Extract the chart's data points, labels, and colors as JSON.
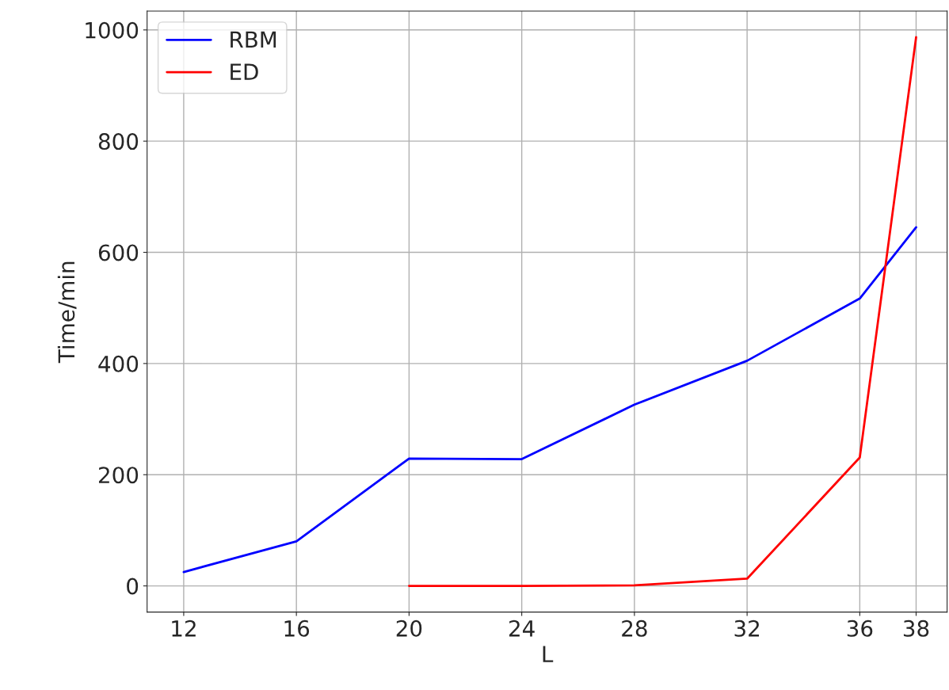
{
  "chart_data": {
    "type": "line",
    "xlabel": "L",
    "ylabel": "Time/min",
    "series": [
      {
        "name": "RBM",
        "color": "#0000ff",
        "x": [
          12,
          16,
          20,
          24,
          28,
          32,
          36,
          38
        ],
        "values": [
          25,
          80,
          229,
          228,
          326,
          405,
          517,
          645
        ]
      },
      {
        "name": "ED",
        "color": "#ff0000",
        "x": [
          20,
          24,
          28,
          32,
          36,
          38
        ],
        "values": [
          0,
          0,
          1,
          13,
          231,
          987
        ]
      }
    ],
    "xlim": [
      10.7,
      39.1
    ],
    "xticks": [
      12,
      16,
      20,
      24,
      28,
      32,
      36,
      38
    ],
    "ylim": [
      -47,
      1034
    ],
    "yticks": [
      0,
      200,
      400,
      600,
      800,
      1000
    ],
    "grid": true,
    "legend": "top left",
    "marker": "none",
    "line_style": "solid"
  }
}
